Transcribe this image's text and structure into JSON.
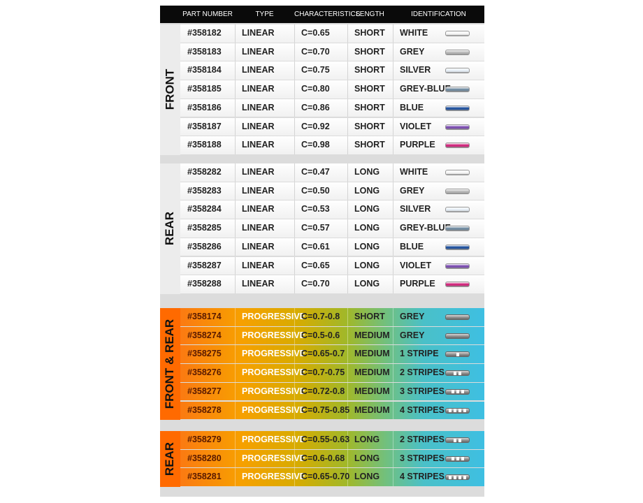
{
  "header": [
    "PART NUMBER",
    "TYPE",
    "CHARACTERISTICS",
    "LENGTH",
    "IDENTIFICATION"
  ],
  "sections": [
    {
      "label": "FRONT",
      "rows": [
        [
          "#358182",
          "LINEAR",
          "C=0.65",
          "SHORT",
          "WHITE"
        ],
        [
          "#358183",
          "LINEAR",
          "C=0.70",
          "SHORT",
          "GREY"
        ],
        [
          "#358184",
          "LINEAR",
          "C=0.75",
          "SHORT",
          "SILVER"
        ],
        [
          "#358185",
          "LINEAR",
          "C=0.80",
          "SHORT",
          "GREY-BLUE"
        ],
        [
          "#358186",
          "LINEAR",
          "C=0.86",
          "SHORT",
          "BLUE"
        ],
        [
          "#358187",
          "LINEAR",
          "C=0.92",
          "SHORT",
          "VIOLET"
        ],
        [
          "#358188",
          "LINEAR",
          "C=0.98",
          "SHORT",
          "PURPLE"
        ]
      ]
    },
    {
      "label": "REAR",
      "rows": [
        [
          "#358282",
          "LINEAR",
          "C=0.47",
          "LONG",
          "WHITE"
        ],
        [
          "#358283",
          "LINEAR",
          "C=0.50",
          "LONG",
          "GREY"
        ],
        [
          "#358284",
          "LINEAR",
          "C=0.53",
          "LONG",
          "SILVER"
        ],
        [
          "#358285",
          "LINEAR",
          "C=0.57",
          "LONG",
          "GREY-BLUE"
        ],
        [
          "#358286",
          "LINEAR",
          "C=0.61",
          "LONG",
          "BLUE"
        ],
        [
          "#358287",
          "LINEAR",
          "C=0.65",
          "LONG",
          "VIOLET"
        ],
        [
          "#358288",
          "LINEAR",
          "C=0.70",
          "LONG",
          "PURPLE"
        ]
      ]
    },
    {
      "label": "FRONT & REAR",
      "rows": [
        [
          "#358174",
          "PROGRESSIVE",
          "C=0.7-0.8",
          "SHORT",
          "GREY"
        ],
        [
          "#358274",
          "PROGRESSIVE",
          "C=0.5-0.6",
          "MEDIUM",
          "GREY"
        ],
        [
          "#358275",
          "PROGRESSIVE",
          "C=0.65-0.7",
          "MEDIUM",
          "1 STRIPE"
        ],
        [
          "#358276",
          "PROGRESSIVE",
          "C=0.7-0.75",
          "MEDIUM",
          "2 STRIPES"
        ],
        [
          "#358277",
          "PROGRESSIVE",
          "C=0.72-0.8",
          "MEDIUM",
          "3 STRIPES"
        ],
        [
          "#358278",
          "PROGRESSIVE",
          "C=0.75-0.85",
          "MEDIUM",
          "4 STRIPES"
        ]
      ]
    },
    {
      "label": "REAR",
      "rows": [
        [
          "#358279",
          "PROGRESSIVE",
          "C=0.55-0.63",
          "LONG",
          "2 STRIPES"
        ],
        [
          "#358280",
          "PROGRESSIVE",
          "C=0.6-0.68",
          "LONG",
          "3 STRIPES"
        ],
        [
          "#358281",
          "PROGRESSIVE",
          "C=0.65-0.70",
          "LONG",
          "4 STRIPES"
        ]
      ]
    }
  ]
}
